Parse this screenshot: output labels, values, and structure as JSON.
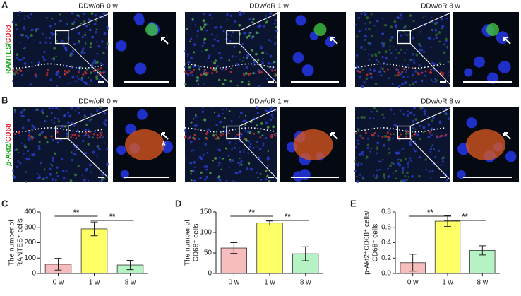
{
  "panel_labels": [
    "A",
    "B",
    "C",
    "D",
    "E"
  ],
  "image_rows": [
    {
      "label_parts": [
        "RANTES",
        "/",
        "CD68"
      ],
      "columns": [
        "DDw/oR 0 w",
        "DDw/oR 1 w",
        "DDw/oR 8 w"
      ]
    },
    {
      "label_parts": [
        "p",
        "-Akt2",
        "/",
        "CD68"
      ],
      "columns": [
        "DDw/oR 0 w",
        "DDw/oR 1 w",
        "DDw/oR 8 w"
      ],
      "marker": "*"
    }
  ],
  "chart_data": [
    {
      "type": "bar",
      "ylabel": [
        "The number of",
        "RANTES⁺ cells"
      ],
      "categories": [
        "0 w",
        "1 w",
        "8 w"
      ],
      "values": [
        60,
        290,
        55
      ],
      "errors": [
        38,
        45,
        30
      ],
      "colors": [
        "#f7bdbd",
        "#ffff66",
        "#b5f2c4"
      ],
      "ylim": [
        0,
        400
      ],
      "yticks": [
        0,
        100,
        200,
        300,
        400
      ],
      "annotations": [
        "**",
        "**"
      ]
    },
    {
      "type": "bar",
      "ylabel": [
        "The number of",
        "CD68⁺ cells"
      ],
      "categories": [
        "0 w",
        "1 w",
        "8 w"
      ],
      "values": [
        62,
        123,
        48
      ],
      "errors": [
        13,
        5,
        17
      ],
      "colors": [
        "#f7bdbd",
        "#ffff66",
        "#b5f2c4"
      ],
      "ylim": [
        0,
        150
      ],
      "yticks": [
        0,
        50,
        100,
        150
      ],
      "annotations": [
        "**",
        "**"
      ]
    },
    {
      "type": "bar",
      "ylabel": [
        "p-Akt2⁺CD68⁺ cells/",
        "CD68⁺ cells"
      ],
      "categories": [
        "0 w",
        "1 w",
        "8 w"
      ],
      "values": [
        0.14,
        0.68,
        0.3
      ],
      "errors": [
        0.11,
        0.07,
        0.06
      ],
      "colors": [
        "#f7bdbd",
        "#ffff66",
        "#b5f2c4"
      ],
      "ylim": [
        0,
        0.8
      ],
      "yticks": [
        {
          "value": 0,
          "label": "0.0"
        },
        0.2,
        0.4,
        0.6,
        0.8
      ],
      "annotations": [
        "**",
        "**"
      ]
    }
  ]
}
